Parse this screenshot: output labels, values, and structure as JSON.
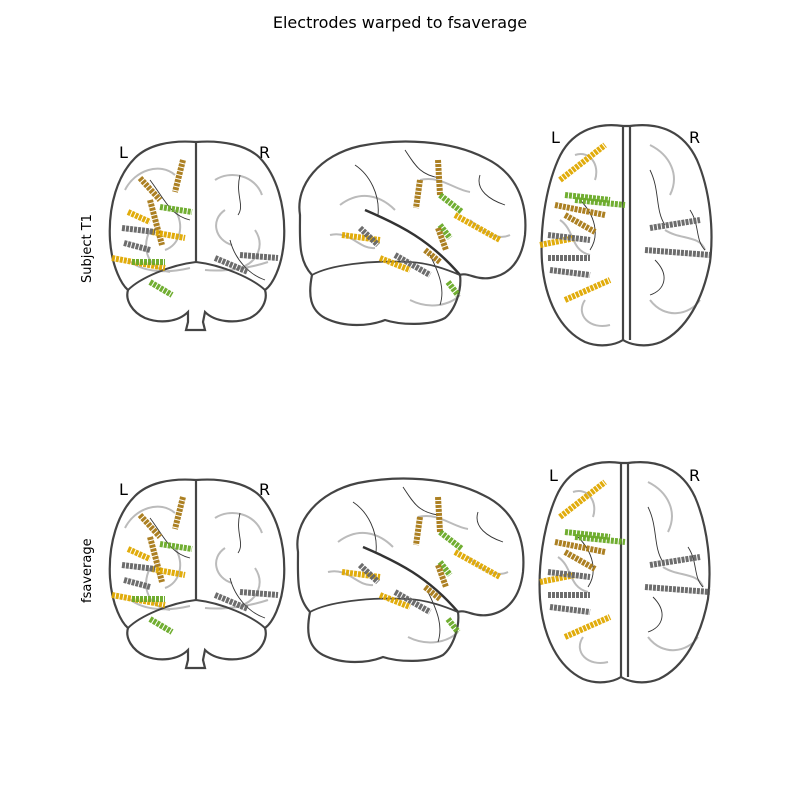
{
  "figure": {
    "title": "Electrodes warped to fsaverage"
  },
  "rows": [
    {
      "label": "Subject T1",
      "left_marker": "L",
      "right_marker": "R",
      "axial_left": "L",
      "axial_right": "R"
    },
    {
      "label": "fsaverage",
      "left_marker": "L",
      "right_marker": "R",
      "axial_left": "L",
      "axial_right": "R"
    }
  ],
  "views": [
    "coronal",
    "sagittal",
    "axial"
  ],
  "colors": {
    "outline": "#444444",
    "sulci": "#bbbbbb",
    "vessels": "#333333",
    "electrode_gold": "#e0a800",
    "electrode_brown": "#a87a18",
    "electrode_green": "#6aaa28",
    "electrode_gray": "#666666"
  }
}
